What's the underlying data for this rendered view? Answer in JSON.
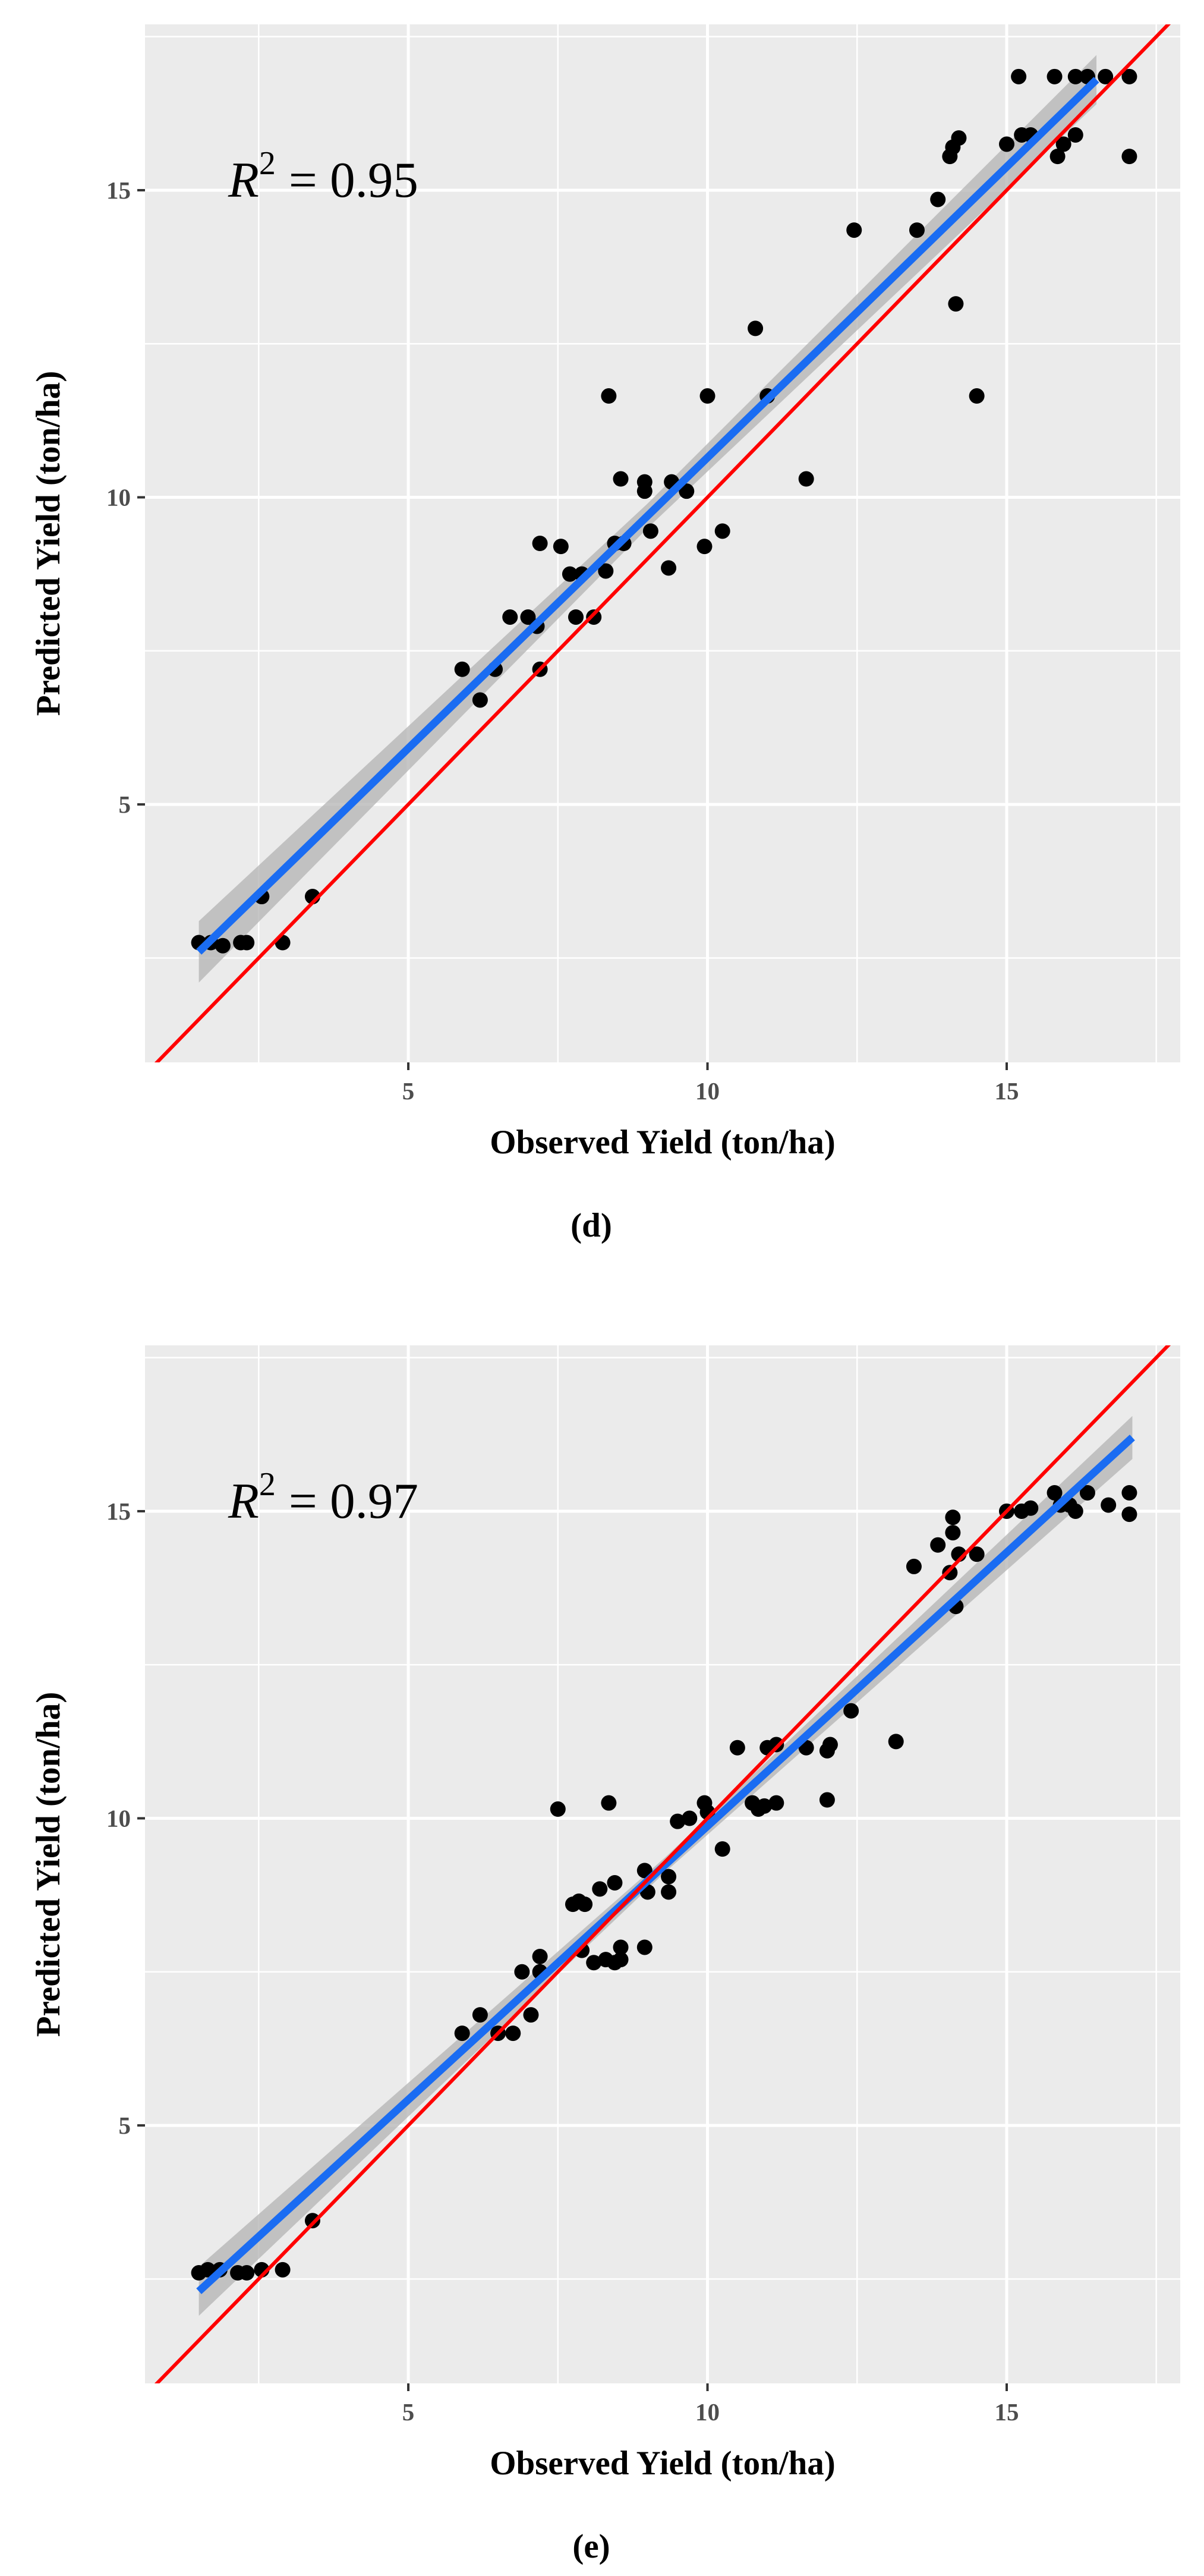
{
  "chart_data": [
    {
      "type": "scatter",
      "panel_label": "(d)",
      "xlabel": "Observed Yield (ton/ha)",
      "ylabel": "Predicted Yield (ton/ha)",
      "xlim": [
        0.6,
        17.9
      ],
      "ylim": [
        0.8,
        17.7
      ],
      "x_ticks": [
        5,
        10,
        15
      ],
      "y_ticks": [
        5,
        10,
        15
      ],
      "annotation": {
        "symbol": "R",
        "superscript": "2",
        "value": "= 0.95"
      },
      "reference_line": {
        "name": "1:1 line",
        "color": "#ff0000",
        "from": [
          0.6,
          0.6
        ],
        "to": [
          17.9,
          17.9
        ]
      },
      "fit_line": {
        "name": "Linear fit",
        "color": "#1a6cf2",
        "band_color": "#b3b3b3",
        "from": [
          1.5,
          2.6
        ],
        "to": [
          16.5,
          16.8
        ],
        "band_halfwidth": [
          0.5,
          0.2,
          0.4
        ]
      },
      "grid": true,
      "points": [
        {
          "x": 1.5,
          "y": 2.75
        },
        {
          "x": 1.7,
          "y": 2.75
        },
        {
          "x": 1.9,
          "y": 2.7
        },
        {
          "x": 2.2,
          "y": 2.75
        },
        {
          "x": 2.3,
          "y": 2.75
        },
        {
          "x": 2.55,
          "y": 3.5
        },
        {
          "x": 2.9,
          "y": 2.75
        },
        {
          "x": 3.4,
          "y": 3.5
        },
        {
          "x": 5.9,
          "y": 7.2
        },
        {
          "x": 6.2,
          "y": 6.7
        },
        {
          "x": 6.45,
          "y": 7.2
        },
        {
          "x": 6.7,
          "y": 8.05
        },
        {
          "x": 7.0,
          "y": 8.05
        },
        {
          "x": 7.15,
          "y": 7.9
        },
        {
          "x": 7.2,
          "y": 7.2
        },
        {
          "x": 7.2,
          "y": 9.25
        },
        {
          "x": 7.55,
          "y": 9.2
        },
        {
          "x": 7.7,
          "y": 8.75
        },
        {
          "x": 7.8,
          "y": 8.05
        },
        {
          "x": 7.9,
          "y": 8.75
        },
        {
          "x": 8.1,
          "y": 8.05
        },
        {
          "x": 8.3,
          "y": 8.8
        },
        {
          "x": 8.35,
          "y": 11.65
        },
        {
          "x": 8.45,
          "y": 9.25
        },
        {
          "x": 8.55,
          "y": 10.3
        },
        {
          "x": 8.6,
          "y": 9.25
        },
        {
          "x": 8.95,
          "y": 10.1
        },
        {
          "x": 8.95,
          "y": 10.25
        },
        {
          "x": 9.05,
          "y": 9.45
        },
        {
          "x": 9.35,
          "y": 8.85
        },
        {
          "x": 9.4,
          "y": 10.25
        },
        {
          "x": 9.65,
          "y": 10.1
        },
        {
          "x": 9.95,
          "y": 9.2
        },
        {
          "x": 10.0,
          "y": 11.65
        },
        {
          "x": 10.25,
          "y": 9.45
        },
        {
          "x": 10.8,
          "y": 12.75
        },
        {
          "x": 11.0,
          "y": 11.65
        },
        {
          "x": 11.65,
          "y": 10.3
        },
        {
          "x": 12.45,
          "y": 14.35
        },
        {
          "x": 13.5,
          "y": 14.35
        },
        {
          "x": 13.85,
          "y": 14.85
        },
        {
          "x": 14.05,
          "y": 15.55
        },
        {
          "x": 14.1,
          "y": 15.7
        },
        {
          "x": 14.2,
          "y": 15.85
        },
        {
          "x": 14.15,
          "y": 13.15
        },
        {
          "x": 14.5,
          "y": 11.65
        },
        {
          "x": 15.0,
          "y": 15.75
        },
        {
          "x": 15.2,
          "y": 16.85
        },
        {
          "x": 15.25,
          "y": 15.9
        },
        {
          "x": 15.4,
          "y": 15.9
        },
        {
          "x": 15.8,
          "y": 16.85
        },
        {
          "x": 15.85,
          "y": 15.55
        },
        {
          "x": 15.95,
          "y": 15.75
        },
        {
          "x": 16.15,
          "y": 15.9
        },
        {
          "x": 16.15,
          "y": 16.85
        },
        {
          "x": 16.35,
          "y": 16.85
        },
        {
          "x": 16.65,
          "y": 16.85
        },
        {
          "x": 17.05,
          "y": 16.85
        },
        {
          "x": 17.05,
          "y": 15.55
        }
      ]
    },
    {
      "type": "scatter",
      "panel_label": "(e)",
      "xlabel": "Observed Yield (ton/ha)",
      "ylabel": "Predicted Yield (ton/ha)",
      "xlim": [
        0.6,
        17.9
      ],
      "ylim": [
        0.8,
        17.7
      ],
      "x_ticks": [
        5,
        10,
        15
      ],
      "y_ticks": [
        5,
        10,
        15
      ],
      "annotation": {
        "symbol": "R",
        "superscript": "2",
        "value": "= 0.97"
      },
      "reference_line": {
        "name": "1:1 line",
        "color": "#ff0000",
        "from": [
          0.6,
          0.6
        ],
        "to": [
          17.9,
          17.9
        ]
      },
      "fit_line": {
        "name": "Linear fit",
        "color": "#1a6cf2",
        "band_color": "#b3b3b3",
        "from": [
          1.5,
          2.3
        ],
        "to": [
          17.1,
          16.2
        ],
        "band_halfwidth": [
          0.4,
          0.12,
          0.35
        ]
      },
      "grid": true,
      "points": [
        {
          "x": 1.5,
          "y": 2.6
        },
        {
          "x": 1.65,
          "y": 2.65
        },
        {
          "x": 1.85,
          "y": 2.65
        },
        {
          "x": 2.15,
          "y": 2.6
        },
        {
          "x": 2.3,
          "y": 2.6
        },
        {
          "x": 2.55,
          "y": 2.65
        },
        {
          "x": 2.9,
          "y": 2.65
        },
        {
          "x": 3.4,
          "y": 3.45
        },
        {
          "x": 5.9,
          "y": 6.5
        },
        {
          "x": 6.2,
          "y": 6.8
        },
        {
          "x": 6.5,
          "y": 6.5
        },
        {
          "x": 6.75,
          "y": 6.5
        },
        {
          "x": 6.9,
          "y": 7.5
        },
        {
          "x": 7.05,
          "y": 6.8
        },
        {
          "x": 7.2,
          "y": 7.5
        },
        {
          "x": 7.2,
          "y": 7.75
        },
        {
          "x": 7.5,
          "y": 10.15
        },
        {
          "x": 7.75,
          "y": 8.6
        },
        {
          "x": 7.85,
          "y": 8.65
        },
        {
          "x": 7.9,
          "y": 7.85
        },
        {
          "x": 7.95,
          "y": 8.6
        },
        {
          "x": 8.1,
          "y": 7.65
        },
        {
          "x": 8.2,
          "y": 8.85
        },
        {
          "x": 8.3,
          "y": 7.7
        },
        {
          "x": 8.35,
          "y": 10.25
        },
        {
          "x": 8.45,
          "y": 7.65
        },
        {
          "x": 8.45,
          "y": 8.95
        },
        {
          "x": 8.55,
          "y": 7.7
        },
        {
          "x": 8.55,
          "y": 7.9
        },
        {
          "x": 8.95,
          "y": 9.15
        },
        {
          "x": 8.95,
          "y": 7.9
        },
        {
          "x": 9.0,
          "y": 8.8
        },
        {
          "x": 9.35,
          "y": 9.05
        },
        {
          "x": 9.35,
          "y": 8.8
        },
        {
          "x": 9.5,
          "y": 9.95
        },
        {
          "x": 9.7,
          "y": 10.0
        },
        {
          "x": 9.95,
          "y": 10.25
        },
        {
          "x": 10.0,
          "y": 10.1
        },
        {
          "x": 10.25,
          "y": 9.5
        },
        {
          "x": 10.5,
          "y": 11.15
        },
        {
          "x": 10.75,
          "y": 10.25
        },
        {
          "x": 10.85,
          "y": 10.15
        },
        {
          "x": 10.95,
          "y": 10.2
        },
        {
          "x": 11.0,
          "y": 11.15
        },
        {
          "x": 11.15,
          "y": 11.2
        },
        {
          "x": 11.15,
          "y": 10.25
        },
        {
          "x": 11.65,
          "y": 11.15
        },
        {
          "x": 12.0,
          "y": 11.1
        },
        {
          "x": 12.05,
          "y": 11.2
        },
        {
          "x": 12.0,
          "y": 10.3
        },
        {
          "x": 12.4,
          "y": 11.75
        },
        {
          "x": 13.15,
          "y": 11.25
        },
        {
          "x": 13.45,
          "y": 14.1
        },
        {
          "x": 13.85,
          "y": 14.45
        },
        {
          "x": 14.05,
          "y": 14.0
        },
        {
          "x": 14.1,
          "y": 14.65
        },
        {
          "x": 14.1,
          "y": 14.9
        },
        {
          "x": 14.15,
          "y": 13.45
        },
        {
          "x": 14.2,
          "y": 14.3
        },
        {
          "x": 14.5,
          "y": 14.3
        },
        {
          "x": 15.0,
          "y": 15.0
        },
        {
          "x": 15.25,
          "y": 15.0
        },
        {
          "x": 15.4,
          "y": 15.05
        },
        {
          "x": 15.8,
          "y": 15.3
        },
        {
          "x": 15.9,
          "y": 15.1
        },
        {
          "x": 16.05,
          "y": 15.1
        },
        {
          "x": 16.15,
          "y": 15.0
        },
        {
          "x": 16.35,
          "y": 15.3
        },
        {
          "x": 16.7,
          "y": 15.1
        },
        {
          "x": 17.05,
          "y": 15.3
        },
        {
          "x": 17.05,
          "y": 14.95
        }
      ]
    }
  ]
}
